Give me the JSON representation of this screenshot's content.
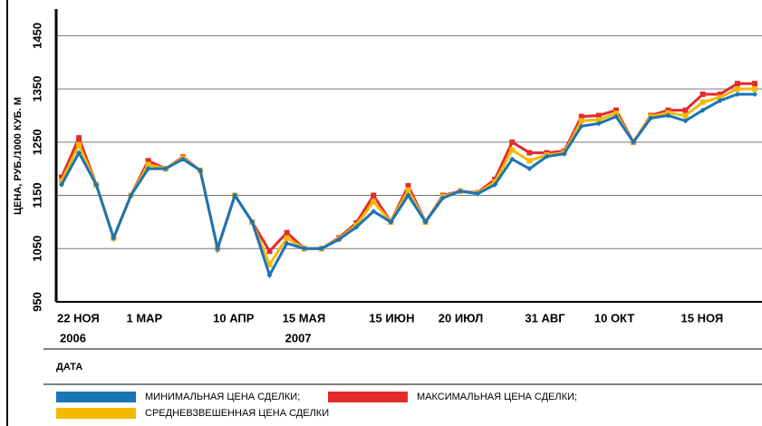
{
  "chart_data": {
    "type": "line",
    "y_label": "ЦЕНА, РУБ./1000 КУБ. М",
    "x_label": "ДАТА",
    "categories": [
      "22 НОЯ",
      null,
      null,
      null,
      "1 МАР",
      null,
      null,
      null,
      null,
      "10 АПР",
      null,
      null,
      null,
      "15 МАЯ",
      null,
      null,
      null,
      null,
      "15 ИЮН",
      null,
      null,
      null,
      "20 ИЮЛ",
      null,
      null,
      null,
      null,
      "31 АВГ",
      null,
      null,
      null,
      "10 ОКТ",
      null,
      null,
      null,
      null,
      "15 НОЯ",
      null,
      null,
      null,
      null
    ],
    "years": [
      "2006",
      null,
      null,
      null,
      null,
      null,
      null,
      null,
      null,
      null,
      null,
      null,
      null,
      "2007",
      null,
      null,
      null,
      null,
      null,
      null,
      null,
      null,
      null,
      null,
      null,
      null,
      null,
      null,
      null,
      null,
      null,
      null,
      null,
      null,
      null,
      null,
      null,
      null,
      null,
      null,
      null
    ],
    "series": [
      {
        "name": "МИНИМАЛЬНАЯ ЦЕНА СДЕЛКИ;",
        "color": "#1a75b5",
        "values": [
          1170,
          1230,
          1170,
          1070,
          1150,
          1200,
          1200,
          1218,
          1197,
          1050,
          1150,
          1100,
          1000,
          1060,
          1050,
          1050,
          1067,
          1090,
          1120,
          1100,
          1150,
          1100,
          1145,
          1158,
          1153,
          1170,
          1218,
          1200,
          1223,
          1228,
          1280,
          1285,
          1298,
          1250,
          1295,
          1300,
          1290,
          1310,
          1328,
          1340,
          1340
        ]
      },
      {
        "name": "МАКСИМАЛЬНАЯ ЦЕНА СДЕЛКИ;",
        "color": "#e32b2b",
        "values": [
          1184,
          1258,
          1170,
          1070,
          1150,
          1215,
          1200,
          1222,
          1197,
          1050,
          1150,
          1100,
          1045,
          1080,
          1050,
          1050,
          1070,
          1098,
          1150,
          1100,
          1168,
          1100,
          1150,
          1158,
          1155,
          1180,
          1250,
          1230,
          1230,
          1233,
          1298,
          1300,
          1310,
          1250,
          1300,
          1310,
          1310,
          1340,
          1340,
          1360,
          1360
        ]
      },
      {
        "name": "СРЕДНЕВЗВЕШЕННАЯ ЦЕНА СДЕЛКИ",
        "color": "#f5b800",
        "values": [
          1177,
          1245,
          1170,
          1070,
          1150,
          1208,
          1200,
          1220,
          1197,
          1050,
          1150,
          1100,
          1020,
          1070,
          1050,
          1050,
          1068,
          1094,
          1138,
          1100,
          1160,
          1100,
          1148,
          1158,
          1154,
          1175,
          1235,
          1215,
          1226,
          1230,
          1290,
          1292,
          1304,
          1250,
          1298,
          1305,
          1300,
          1325,
          1334,
          1350,
          1350
        ]
      }
    ],
    "ylim": [
      950,
      1500
    ],
    "yticks": [
      950,
      1050,
      1150,
      1250,
      1350,
      1450
    ],
    "grid": true
  }
}
